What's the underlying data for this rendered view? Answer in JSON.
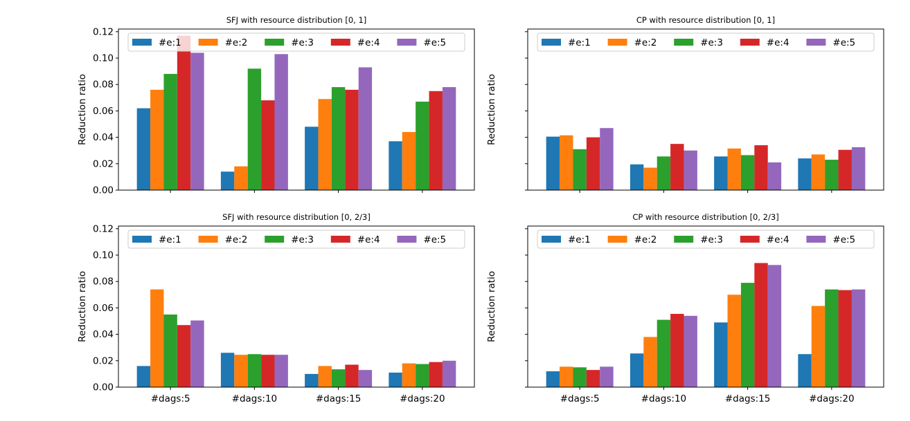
{
  "colors": {
    "series": [
      "#1f77b4",
      "#ff7f0e",
      "#2ca02c",
      "#d62728",
      "#9467bd"
    ],
    "axis": "#000000",
    "background": "#ffffff"
  },
  "chart_data": [
    {
      "type": "bar",
      "title": "SFJ with resource distribution [0, 1]",
      "xlabel": "",
      "ylabel": "Reduction ratio",
      "ylim": [
        0,
        0.122
      ],
      "yticks": [
        0.0,
        0.02,
        0.04,
        0.06,
        0.08,
        0.1,
        0.12
      ],
      "ytick_labels": [
        "0.00",
        "0.02",
        "0.04",
        "0.06",
        "0.08",
        "0.10",
        "0.12"
      ],
      "show_ytick_labels": true,
      "show_xtick_labels": false,
      "legend": "top",
      "categories": [
        "#dags:5",
        "#dags:10",
        "#dags:15",
        "#dags:20"
      ],
      "series": [
        {
          "name": "#e:1",
          "values": [
            0.062,
            0.014,
            0.048,
            0.037
          ]
        },
        {
          "name": "#e:2",
          "values": [
            0.076,
            0.018,
            0.069,
            0.044
          ]
        },
        {
          "name": "#e:3",
          "values": [
            0.088,
            0.092,
            0.078,
            0.067
          ]
        },
        {
          "name": "#e:4",
          "values": [
            0.117,
            0.068,
            0.076,
            0.075
          ]
        },
        {
          "name": "#e:5",
          "values": [
            0.104,
            0.103,
            0.093,
            0.078
          ]
        }
      ]
    },
    {
      "type": "bar",
      "title": "CP with resource distribution [0, 1]",
      "xlabel": "",
      "ylabel": "Reduction ratio",
      "ylim": [
        0,
        0.122
      ],
      "yticks": [
        0.0,
        0.02,
        0.04,
        0.06,
        0.08,
        0.1,
        0.12
      ],
      "ytick_labels": [
        "",
        "",
        "",
        "",
        "",
        "",
        ""
      ],
      "show_ytick_labels": false,
      "show_xtick_labels": false,
      "legend": "top",
      "categories": [
        "#dags:5",
        "#dags:10",
        "#dags:15",
        "#dags:20"
      ],
      "series": [
        {
          "name": "#e:1",
          "values": [
            0.0405,
            0.0195,
            0.0255,
            0.024
          ]
        },
        {
          "name": "#e:2",
          "values": [
            0.0415,
            0.017,
            0.0315,
            0.027
          ]
        },
        {
          "name": "#e:3",
          "values": [
            0.031,
            0.0255,
            0.0265,
            0.023
          ]
        },
        {
          "name": "#e:4",
          "values": [
            0.04,
            0.035,
            0.034,
            0.0305
          ]
        },
        {
          "name": "#e:5",
          "values": [
            0.047,
            0.03,
            0.021,
            0.0325
          ]
        }
      ]
    },
    {
      "type": "bar",
      "title": "SFJ with resource distribution [0, 2/3]",
      "xlabel": "",
      "ylabel": "Reduction ratio",
      "ylim": [
        0,
        0.122
      ],
      "yticks": [
        0.0,
        0.02,
        0.04,
        0.06,
        0.08,
        0.1,
        0.12
      ],
      "ytick_labels": [
        "0.00",
        "0.02",
        "0.04",
        "0.06",
        "0.08",
        "0.10",
        "0.12"
      ],
      "show_ytick_labels": true,
      "show_xtick_labels": true,
      "legend": "top",
      "categories": [
        "#dags:5",
        "#dags:10",
        "#dags:15",
        "#dags:20"
      ],
      "series": [
        {
          "name": "#e:1",
          "values": [
            0.016,
            0.026,
            0.01,
            0.011
          ]
        },
        {
          "name": "#e:2",
          "values": [
            0.074,
            0.0245,
            0.016,
            0.018
          ]
        },
        {
          "name": "#e:3",
          "values": [
            0.055,
            0.025,
            0.0135,
            0.0175
          ]
        },
        {
          "name": "#e:4",
          "values": [
            0.047,
            0.0245,
            0.017,
            0.019
          ]
        },
        {
          "name": "#e:5",
          "values": [
            0.0505,
            0.0245,
            0.013,
            0.02
          ]
        }
      ]
    },
    {
      "type": "bar",
      "title": "CP with resource distribution [0, 2/3]",
      "xlabel": "",
      "ylabel": "Reduction ratio",
      "ylim": [
        0,
        0.122
      ],
      "yticks": [
        0.0,
        0.02,
        0.04,
        0.06,
        0.08,
        0.1,
        0.12
      ],
      "ytick_labels": [
        "",
        "",
        "",
        "",
        "",
        "",
        ""
      ],
      "show_ytick_labels": false,
      "show_xtick_labels": true,
      "legend": "top",
      "categories": [
        "#dags:5",
        "#dags:10",
        "#dags:15",
        "#dags:20"
      ],
      "series": [
        {
          "name": "#e:1",
          "values": [
            0.012,
            0.0255,
            0.049,
            0.025
          ]
        },
        {
          "name": "#e:2",
          "values": [
            0.0155,
            0.038,
            0.07,
            0.0615
          ]
        },
        {
          "name": "#e:3",
          "values": [
            0.015,
            0.051,
            0.079,
            0.074
          ]
        },
        {
          "name": "#e:4",
          "values": [
            0.013,
            0.0555,
            0.094,
            0.0735
          ]
        },
        {
          "name": "#e:5",
          "values": [
            0.0155,
            0.054,
            0.0925,
            0.074
          ]
        }
      ]
    }
  ]
}
